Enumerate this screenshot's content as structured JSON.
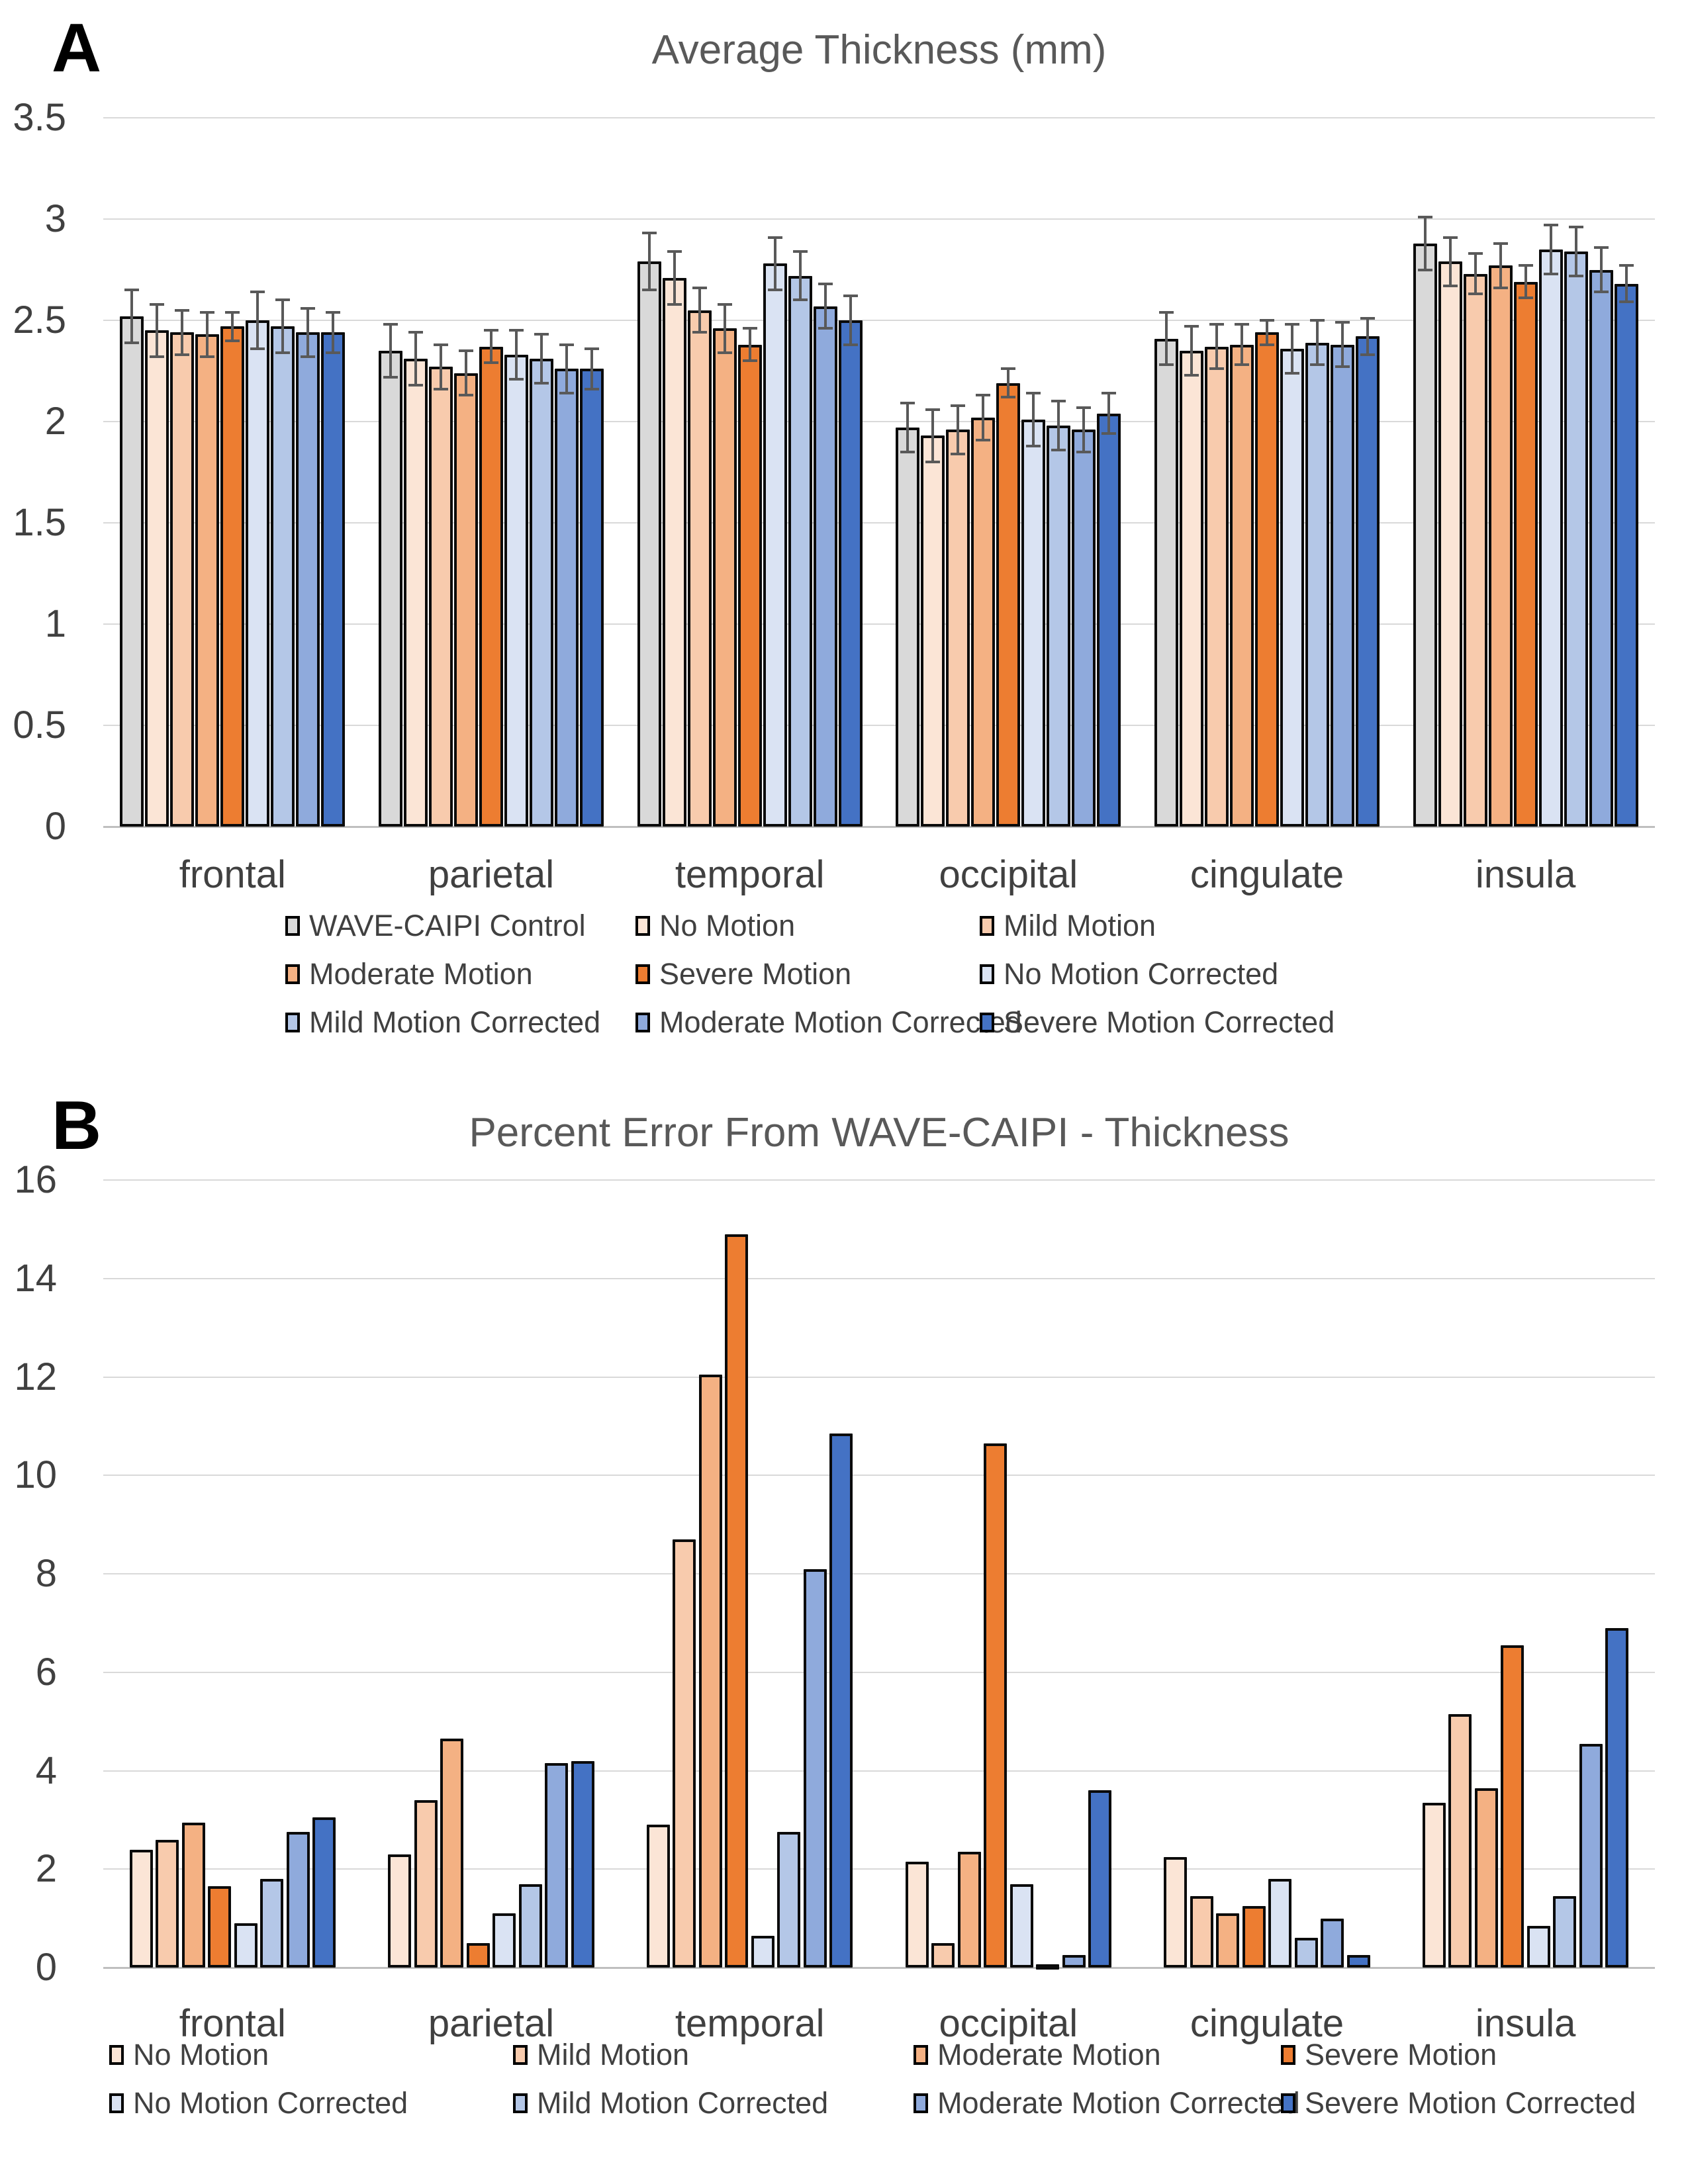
{
  "figure_colors": {
    "background": "#ffffff",
    "title_text": "#595959",
    "axis_text": "#404040",
    "gridline": "#d9d9d9",
    "axis_line": "#bfbfbf",
    "bar_outline": "#0b0b0b",
    "error_bar": "#595959"
  },
  "chart_data": [
    {
      "panel_label": "A",
      "type": "bar",
      "title": "Average Thickness (mm)",
      "xlabel": "",
      "ylabel": "",
      "ylim": [
        0,
        3.5
      ],
      "ytick_step": 0.5,
      "y_ticks": [
        "0",
        "0.5",
        "1",
        "1.5",
        "2",
        "2.5",
        "3",
        "3.5"
      ],
      "grid": true,
      "error_bars": true,
      "legend_position": "bottom",
      "categories": [
        "frontal",
        "parietal",
        "temporal",
        "occipital",
        "cingulate",
        "insula"
      ],
      "series": [
        {
          "name": "WAVE-CAIPI Control",
          "color": "#D9D9D9",
          "values": [
            2.52,
            2.35,
            2.79,
            1.97,
            2.41,
            2.88
          ],
          "errors": [
            0.13,
            0.13,
            0.14,
            0.12,
            0.13,
            0.13
          ]
        },
        {
          "name": "No Motion",
          "color": "#FBE5D6",
          "values": [
            2.45,
            2.31,
            2.71,
            1.93,
            2.35,
            2.79
          ],
          "errors": [
            0.13,
            0.13,
            0.13,
            0.13,
            0.12,
            0.12
          ]
        },
        {
          "name": "Mild Motion",
          "color": "#F8CBAD",
          "values": [
            2.44,
            2.27,
            2.55,
            1.96,
            2.37,
            2.73
          ],
          "errors": [
            0.11,
            0.11,
            0.11,
            0.12,
            0.11,
            0.1
          ]
        },
        {
          "name": "Moderate Motion",
          "color": "#F4B183",
          "values": [
            2.43,
            2.24,
            2.46,
            2.02,
            2.38,
            2.77
          ],
          "errors": [
            0.11,
            0.11,
            0.12,
            0.11,
            0.1,
            0.11
          ]
        },
        {
          "name": "Severe Motion",
          "color": "#ED7D31",
          "values": [
            2.47,
            2.37,
            2.38,
            2.19,
            2.44,
            2.69
          ],
          "errors": [
            0.07,
            0.08,
            0.08,
            0.07,
            0.06,
            0.08
          ]
        },
        {
          "name": "No Motion Corrected",
          "color": "#DAE3F3",
          "values": [
            2.5,
            2.33,
            2.78,
            2.01,
            2.36,
            2.85
          ],
          "errors": [
            0.14,
            0.12,
            0.13,
            0.13,
            0.12,
            0.12
          ]
        },
        {
          "name": "Mild Motion Corrected",
          "color": "#B4C7E7",
          "values": [
            2.47,
            2.31,
            2.72,
            1.98,
            2.39,
            2.84
          ],
          "errors": [
            0.13,
            0.12,
            0.12,
            0.12,
            0.11,
            0.12
          ]
        },
        {
          "name": "Moderate Motion Corrected",
          "color": "#8FAADC",
          "values": [
            2.44,
            2.26,
            2.57,
            1.96,
            2.38,
            2.75
          ],
          "errors": [
            0.12,
            0.12,
            0.11,
            0.11,
            0.11,
            0.11
          ]
        },
        {
          "name": "Severe Motion Corrected",
          "color": "#4472C4",
          "values": [
            2.44,
            2.26,
            2.5,
            2.04,
            2.42,
            2.68
          ],
          "errors": [
            0.1,
            0.1,
            0.12,
            0.1,
            0.09,
            0.09
          ]
        }
      ],
      "legend_rows": [
        [
          "WAVE-CAIPI Control",
          "No Motion",
          "Mild Motion"
        ],
        [
          "Moderate Motion",
          "Severe Motion",
          "No Motion Corrected"
        ],
        [
          "Mild Motion Corrected",
          "Moderate Motion Corrected",
          "Severe Motion Corrected"
        ]
      ]
    },
    {
      "panel_label": "B",
      "type": "bar",
      "title": "Percent Error From WAVE-CAIPI - Thickness",
      "xlabel": "",
      "ylabel": "",
      "ylim": [
        0,
        16
      ],
      "ytick_step": 2,
      "y_ticks": [
        "0",
        "2",
        "4",
        "6",
        "8",
        "10",
        "12",
        "14",
        "16"
      ],
      "grid": true,
      "error_bars": false,
      "legend_position": "bottom",
      "categories": [
        "frontal",
        "parietal",
        "temporal",
        "occipital",
        "cingulate",
        "insula"
      ],
      "series": [
        {
          "name": "No Motion",
          "color": "#FBE5D6",
          "values": [
            2.4,
            2.3,
            2.9,
            2.15,
            2.25,
            3.35
          ]
        },
        {
          "name": "Mild Motion",
          "color": "#F8CBAD",
          "values": [
            2.6,
            3.4,
            8.7,
            0.5,
            1.45,
            5.15
          ]
        },
        {
          "name": "Moderate Motion",
          "color": "#F4B183",
          "values": [
            2.95,
            4.65,
            12.05,
            2.35,
            1.1,
            3.65
          ]
        },
        {
          "name": "Severe Motion",
          "color": "#ED7D31",
          "values": [
            1.65,
            0.5,
            14.9,
            10.65,
            1.25,
            6.55
          ]
        },
        {
          "name": "No Motion Corrected",
          "color": "#DAE3F3",
          "values": [
            0.9,
            1.1,
            0.65,
            1.7,
            1.8,
            0.85
          ]
        },
        {
          "name": "Mild Motion Corrected",
          "color": "#B4C7E7",
          "values": [
            1.8,
            1.7,
            2.75,
            0.05,
            0.6,
            1.45
          ]
        },
        {
          "name": "Moderate Motion Corrected",
          "color": "#8FAADC",
          "values": [
            2.75,
            4.15,
            8.1,
            0.25,
            1.0,
            4.55
          ]
        },
        {
          "name": "Severe Motion Corrected",
          "color": "#4472C4",
          "values": [
            3.05,
            4.2,
            10.85,
            3.6,
            0.25,
            6.9
          ]
        }
      ],
      "legend_rows": [
        [
          "No Motion",
          "Mild Motion",
          "Moderate Motion",
          "Severe Motion"
        ],
        [
          "No Motion Corrected",
          "Mild Motion Corrected",
          "Moderate Motion Corrected",
          "Severe Motion Corrected"
        ]
      ]
    }
  ]
}
